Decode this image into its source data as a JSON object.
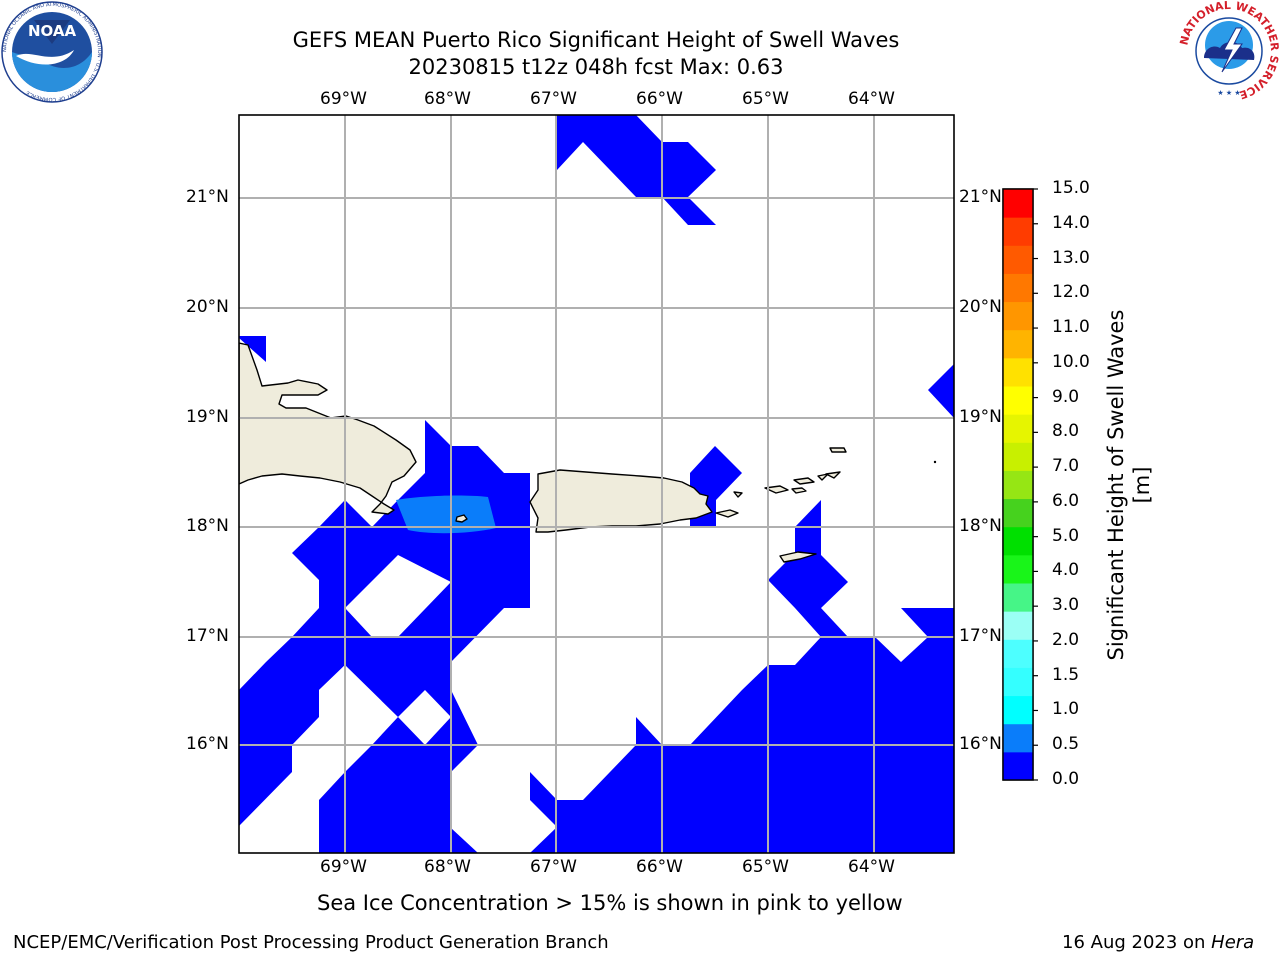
{
  "title": {
    "line1": "GEFS MEAN Puerto Rico Significant Height of Swell Waves",
    "line2": "20230815 t12z 048h fcst   Max: 0.63"
  },
  "map": {
    "lon_ticks": [
      "69°W",
      "68°W",
      "67°W",
      "66°W",
      "65°W",
      "64°W"
    ],
    "lat_ticks": [
      "21°N",
      "20°N",
      "19°N",
      "18°N",
      "17°N",
      "16°N"
    ],
    "land_color": "#efecdc",
    "wave_color_low": "#0000ff",
    "wave_color_mid": "#0a7dfa"
  },
  "colorbar": {
    "label": "Significant Height of Swell Waves [m]",
    "ticks": [
      "15.0",
      "14.0",
      "13.0",
      "12.0",
      "11.0",
      "10.0",
      "9.0",
      "8.0",
      "7.0",
      "6.0",
      "5.0",
      "4.0",
      "3.0",
      "2.0",
      "1.5",
      "1.0",
      "0.5",
      "0.0"
    ],
    "colors": [
      "#0000ff",
      "#0a7dfa",
      "#00ffff",
      "#34ffff",
      "#4dffff",
      "#9bfff5",
      "#46f587",
      "#19f519",
      "#00e000",
      "#46d21e",
      "#96e614",
      "#c8f000",
      "#e6f500",
      "#ffff00",
      "#ffe100",
      "#ffb400",
      "#ff9600",
      "#ff7800",
      "#ff5a00",
      "#ff3c00",
      "#ff0000"
    ]
  },
  "notes": {
    "sea_ice": "Sea Ice Concentration > 15% is shown in pink to yellow"
  },
  "footer": {
    "left": "NCEP/EMC/Verification Post Processing Product Generation Branch",
    "date": "16 Aug 2023 on ",
    "host": "Hera"
  },
  "logos": {
    "noaa_text": "NOAA",
    "noaa_ring": "NATIONAL OCEANIC AND ATMOSPHERIC ADMINISTRATION · U.S. DEPARTMENT OF COMMERCE",
    "nws_ring": "NATIONAL WEATHER SERVICE"
  }
}
